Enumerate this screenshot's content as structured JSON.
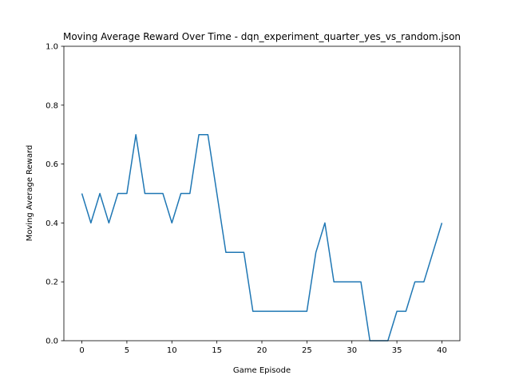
{
  "chart_data": {
    "type": "line",
    "title": "Moving Average Reward Over Time - dqn_experiment_quarter_yes_vs_random.json",
    "xlabel": "Game Episode",
    "ylabel": "Moving Average Reward",
    "xlim": [
      -2,
      42
    ],
    "ylim": [
      0,
      1.0
    ],
    "x_ticks": [
      0,
      5,
      10,
      15,
      20,
      25,
      30,
      35,
      40
    ],
    "x_tick_labels": [
      "0",
      "5",
      "10",
      "15",
      "20",
      "25",
      "30",
      "35",
      "40"
    ],
    "y_ticks": [
      0,
      0.2,
      0.4,
      0.6,
      0.8,
      1.0
    ],
    "y_tick_labels": [
      "0.0",
      "0.2",
      "0.4",
      "0.6",
      "0.8",
      "1.0"
    ],
    "grid": false,
    "series": [
      {
        "color": "#1f77b4",
        "x": [
          0,
          1,
          2,
          3,
          4,
          5,
          6,
          7,
          8,
          9,
          10,
          11,
          12,
          13,
          14,
          15,
          16,
          17,
          18,
          19,
          20,
          21,
          22,
          23,
          24,
          25,
          26,
          27,
          28,
          29,
          30,
          31,
          32,
          33,
          34,
          35,
          36,
          37,
          38,
          39,
          40
        ],
        "values": [
          0.5,
          0.4,
          0.5,
          0.4,
          0.5,
          0.5,
          0.7,
          0.5,
          0.5,
          0.5,
          0.4,
          0.5,
          0.5,
          0.7,
          0.7,
          0.5,
          0.3,
          0.3,
          0.3,
          0.1,
          0.1,
          0.1,
          0.1,
          0.1,
          0.1,
          0.1,
          0.3,
          0.4,
          0.2,
          0.2,
          0.2,
          0.2,
          0.0,
          0.0,
          0.0,
          0.1,
          0.1,
          0.2,
          0.2,
          0.3,
          0.4
        ]
      }
    ]
  }
}
